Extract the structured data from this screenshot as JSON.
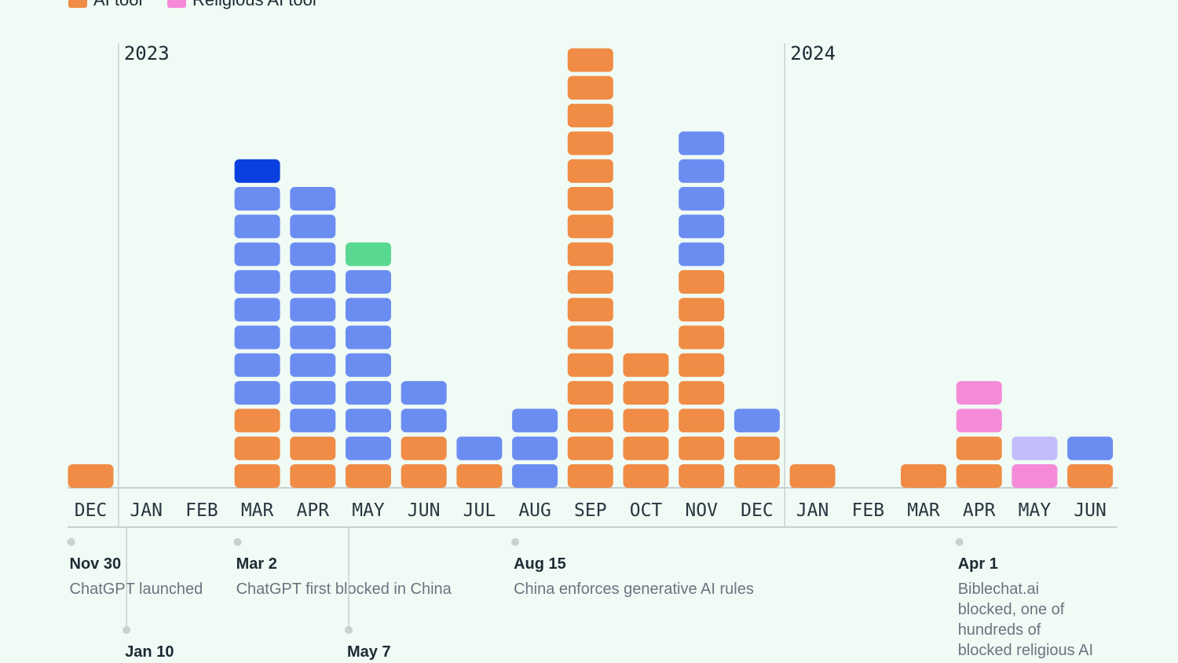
{
  "legend": [
    {
      "label": "AI tool",
      "color": "#f08c45"
    },
    {
      "label": "Religious AI tool",
      "color": "#f58ad9"
    }
  ],
  "colors": {
    "ai": "#f08c45",
    "religious": "#f58ad9",
    "blue": "#6b8df2",
    "darkblue": "#0a40e0",
    "green": "#58d890",
    "lavender": "#c2bdfa"
  },
  "years": [
    {
      "label": "2023",
      "at_month_index": 1
    },
    {
      "label": "2024",
      "at_month_index": 13
    }
  ],
  "chart_data": {
    "type": "bar",
    "categories": [
      "DEC",
      "JAN",
      "FEB",
      "MAR",
      "APR",
      "MAY",
      "JUN",
      "JUL",
      "AUG",
      "SEP",
      "OCT",
      "NOV",
      "DEC",
      "JAN",
      "FEB",
      "MAR",
      "APR",
      "MAY",
      "JUN"
    ],
    "stacks": [
      [
        "ai"
      ],
      [],
      [],
      [
        "ai",
        "ai",
        "ai",
        "blue",
        "blue",
        "blue",
        "blue",
        "blue",
        "blue",
        "blue",
        "blue",
        "darkblue"
      ],
      [
        "ai",
        "ai",
        "blue",
        "blue",
        "blue",
        "blue",
        "blue",
        "blue",
        "blue",
        "blue",
        "blue"
      ],
      [
        "ai",
        "blue",
        "blue",
        "blue",
        "blue",
        "blue",
        "blue",
        "blue",
        "green"
      ],
      [
        "ai",
        "ai",
        "blue",
        "blue"
      ],
      [
        "ai",
        "blue"
      ],
      [
        "blue",
        "blue",
        "blue"
      ],
      [
        "ai",
        "ai",
        "ai",
        "ai",
        "ai",
        "ai",
        "ai",
        "ai",
        "ai",
        "ai",
        "ai",
        "ai",
        "ai",
        "ai",
        "ai",
        "ai"
      ],
      [
        "ai",
        "ai",
        "ai",
        "ai",
        "ai"
      ],
      [
        "ai",
        "ai",
        "ai",
        "ai",
        "ai",
        "ai",
        "ai",
        "ai",
        "blue",
        "blue",
        "blue",
        "blue",
        "blue"
      ],
      [
        "ai",
        "ai",
        "blue"
      ],
      [
        "ai"
      ],
      [],
      [
        "ai"
      ],
      [
        "ai",
        "ai",
        "religious",
        "religious"
      ],
      [
        "religious",
        "lavender"
      ],
      [
        "ai",
        "blue"
      ]
    ]
  },
  "events": [
    {
      "month_index": 0,
      "level": 0,
      "date": "Nov 30",
      "lines": [
        "ChatGPT launched"
      ]
    },
    {
      "month_index": 1,
      "level": 1,
      "date": "Jan 10",
      "lines": []
    },
    {
      "month_index": 3,
      "level": 0,
      "date": "Mar 2",
      "lines": [
        "ChatGPT first blocked in China"
      ]
    },
    {
      "month_index": 5,
      "level": 1,
      "date": "May 7",
      "lines": []
    },
    {
      "month_index": 8,
      "level": 0,
      "date": "Aug 15",
      "lines": [
        "China enforces generative AI rules"
      ]
    },
    {
      "month_index": 16,
      "level": 0,
      "date": "Apr 1",
      "lines": [
        "Biblechat.ai",
        "blocked, one of",
        "hundreds of",
        "blocked religious AI"
      ]
    }
  ]
}
